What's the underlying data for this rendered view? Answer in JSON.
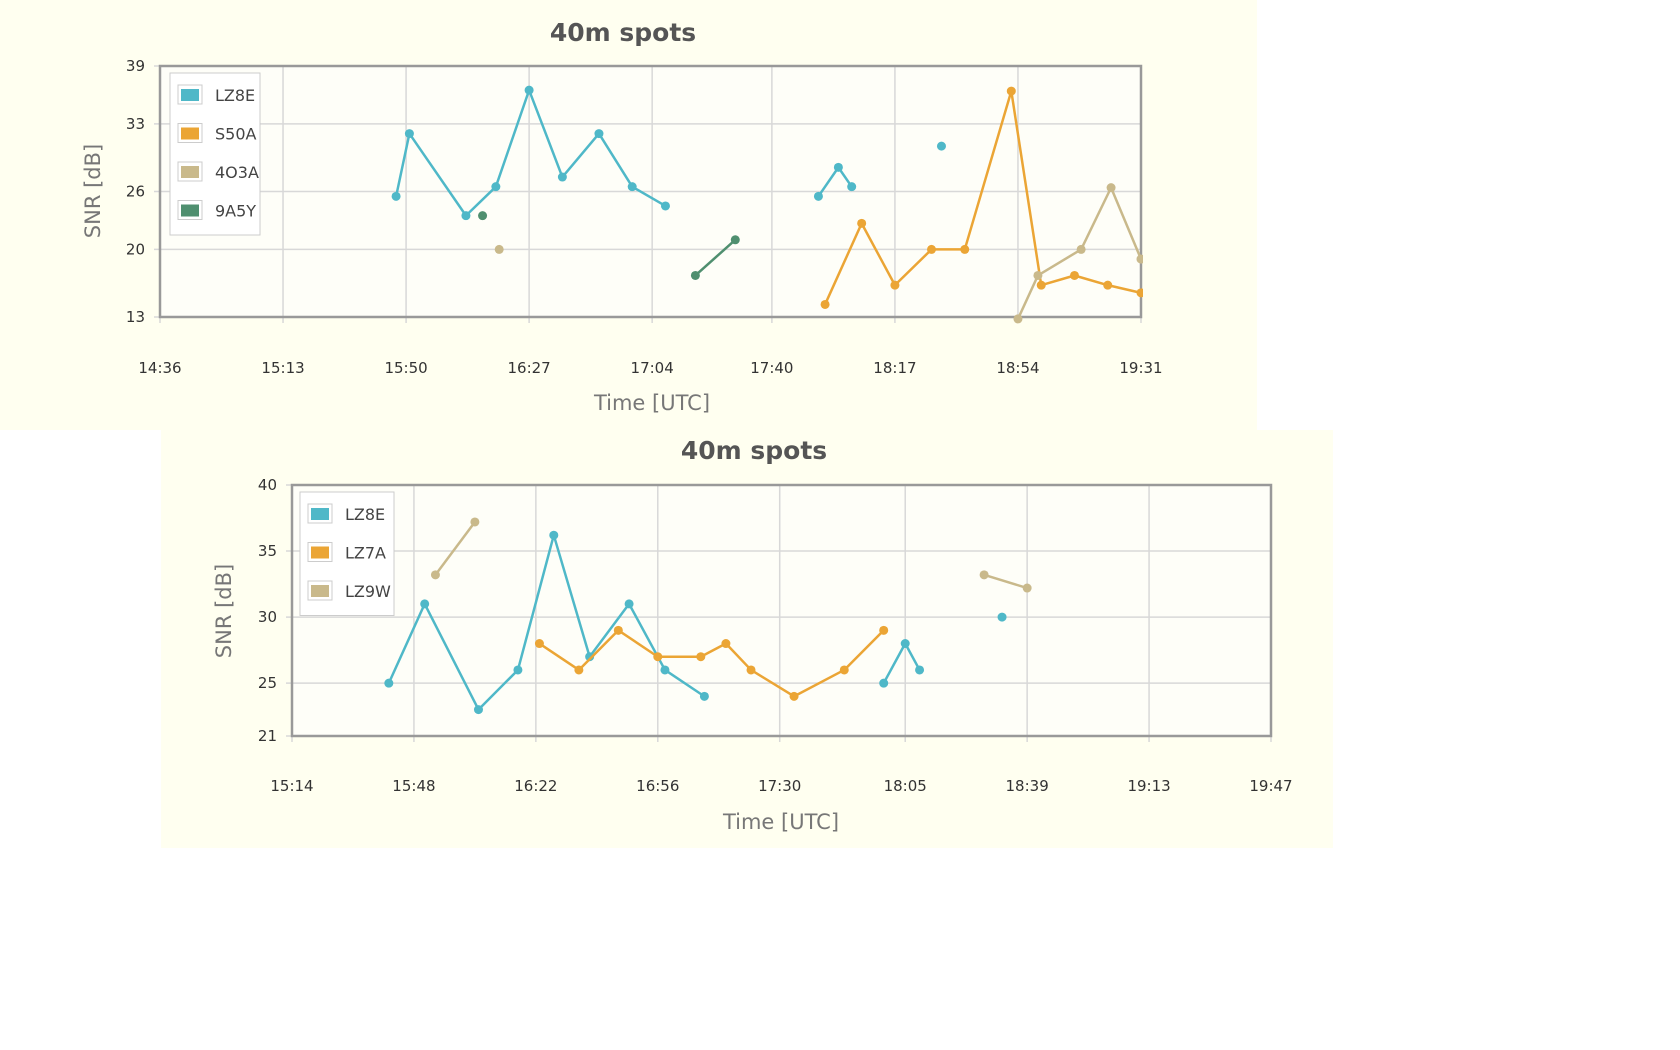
{
  "colors": {
    "panel_bg": "#fffff0",
    "plot_bg": "#fefef8",
    "grid": "#d8d8d8",
    "frame": "#999999",
    "LZ8E": "#4fb8c8",
    "S50A": "#eba535",
    "4O3A": "#c9b98b",
    "9A5Y": "#4f8f6f",
    "LZ7A": "#eba535",
    "LZ9W": "#c9b98b"
  },
  "chart_data": [
    {
      "type": "line",
      "title": "40m spots",
      "xlabel": "Time [UTC]",
      "ylabel": "SNR [dB]",
      "x_ticks": [
        "14:36",
        "15:13",
        "15:50",
        "16:27",
        "17:04",
        "17:40",
        "18:17",
        "18:54",
        "19:31"
      ],
      "y_ticks": [
        "39",
        "33",
        "26",
        "20",
        "13"
      ],
      "ylim": [
        13,
        39
      ],
      "grid": true,
      "legend_position": "top-left",
      "series": [
        {
          "name": "LZ8E",
          "color": "#4fb8c8",
          "segments": [
            [
              [
                "15:47",
                25.5
              ],
              [
                "15:51",
                32.0
              ],
              [
                "16:08",
                23.5
              ],
              [
                "16:17",
                26.5
              ],
              [
                "16:27",
                36.5
              ],
              [
                "16:37",
                27.5
              ],
              [
                "16:48",
                32.0
              ],
              [
                "16:58",
                26.5
              ],
              [
                "17:08",
                24.5
              ]
            ],
            [
              [
                "17:54",
                25.5
              ],
              [
                "18:00",
                28.5
              ],
              [
                "18:04",
                26.5
              ]
            ],
            [
              [
                "18:31",
                30.7
              ]
            ]
          ]
        },
        {
          "name": "S50A",
          "color": "#eba535",
          "segments": [
            [
              [
                "17:56",
                14.3
              ],
              [
                "18:07",
                22.7
              ],
              [
                "18:17",
                16.3
              ],
              [
                "18:28",
                20.0
              ],
              [
                "18:38",
                20.0
              ],
              [
                "18:52",
                36.4
              ],
              [
                "19:01",
                16.3
              ],
              [
                "19:11",
                17.3
              ],
              [
                "19:21",
                16.3
              ],
              [
                "19:31",
                15.5
              ]
            ]
          ]
        },
        {
          "name": "4O3A",
          "color": "#c9b98b",
          "segments": [
            [
              [
                "16:18",
                20.0
              ]
            ],
            [
              [
                "18:54",
                12.8
              ],
              [
                "19:00",
                17.3
              ],
              [
                "19:13",
                20.0
              ],
              [
                "19:22",
                26.4
              ],
              [
                "19:31",
                19.0
              ]
            ]
          ]
        },
        {
          "name": "9A5Y",
          "color": "#4f8f6f",
          "segments": [
            [
              [
                "16:13",
                23.5
              ]
            ],
            [
              [
                "17:17",
                17.3
              ],
              [
                "17:29",
                21.0
              ]
            ]
          ]
        }
      ]
    },
    {
      "type": "line",
      "title": "40m spots",
      "xlabel": "Time [UTC]",
      "ylabel": "SNR [dB]",
      "x_ticks": [
        "15:14",
        "15:48",
        "16:22",
        "16:56",
        "17:30",
        "18:05",
        "18:39",
        "19:13",
        "19:47"
      ],
      "y_ticks": [
        "40",
        "35",
        "30",
        "25",
        "21"
      ],
      "ylim": [
        21,
        40
      ],
      "grid": true,
      "legend_position": "top-left",
      "series": [
        {
          "name": "LZ8E",
          "color": "#4fb8c8",
          "segments": [
            [
              [
                "15:41",
                25.0
              ],
              [
                "15:51",
                31.0
              ],
              [
                "16:06",
                23.0
              ],
              [
                "16:17",
                26.0
              ],
              [
                "16:27",
                36.2
              ],
              [
                "16:37",
                27.0
              ],
              [
                "16:48",
                31.0
              ],
              [
                "16:58",
                26.0
              ],
              [
                "17:09",
                24.0
              ]
            ],
            [
              [
                "17:59",
                25.0
              ],
              [
                "18:05",
                28.0
              ],
              [
                "18:09",
                26.0
              ]
            ],
            [
              [
                "18:32",
                30.0
              ]
            ]
          ]
        },
        {
          "name": "LZ7A",
          "color": "#eba535",
          "segments": [
            [
              [
                "16:23",
                28.0
              ],
              [
                "16:34",
                26.0
              ],
              [
                "16:45",
                29.0
              ],
              [
                "16:56",
                27.0
              ],
              [
                "17:08",
                27.0
              ],
              [
                "17:15",
                28.0
              ],
              [
                "17:22",
                26.0
              ],
              [
                "17:34",
                24.0
              ],
              [
                "17:48",
                26.0
              ],
              [
                "17:59",
                29.0
              ]
            ]
          ]
        },
        {
          "name": "LZ9W",
          "color": "#c9b98b",
          "segments": [
            [
              [
                "15:54",
                33.2
              ],
              [
                "16:05",
                37.2
              ]
            ],
            [
              [
                "18:27",
                33.2
              ],
              [
                "18:39",
                32.2
              ]
            ]
          ]
        }
      ]
    }
  ]
}
